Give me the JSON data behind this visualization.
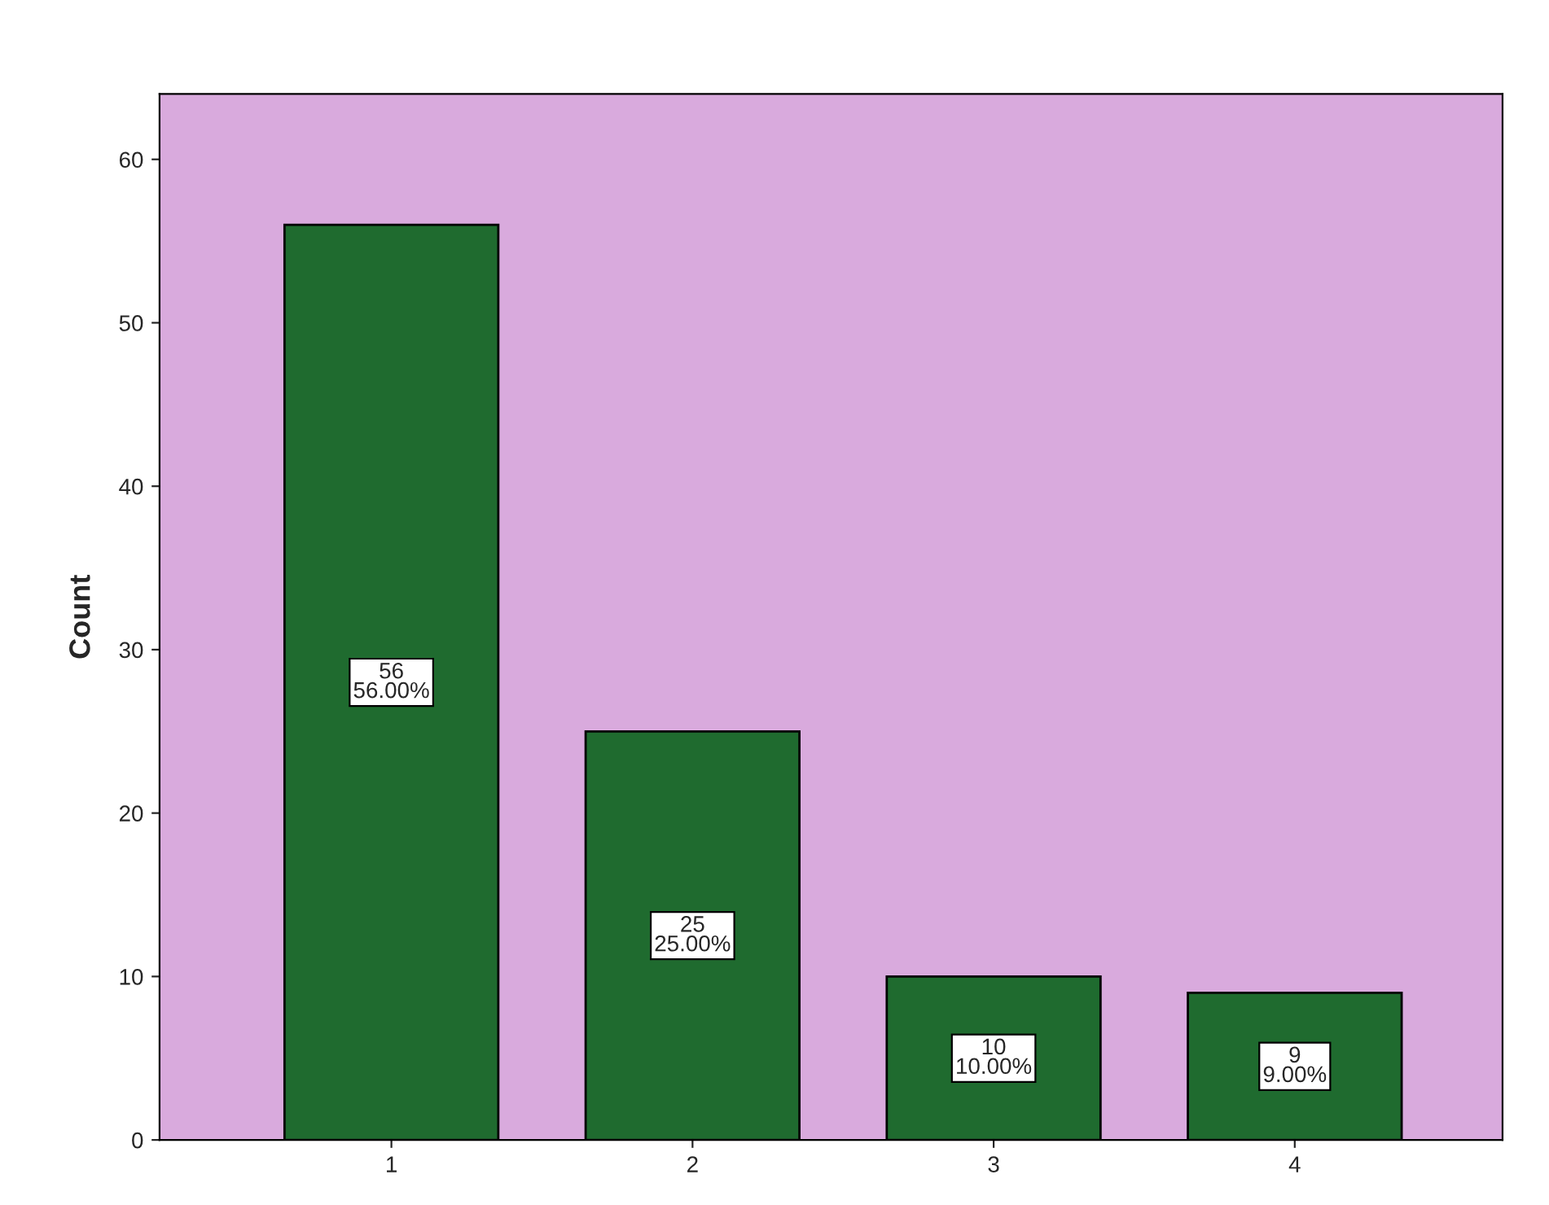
{
  "chart_data": {
    "type": "bar",
    "ylabel": "Count",
    "categories": [
      "1",
      "2",
      "3",
      "4"
    ],
    "values": [
      56,
      25,
      10,
      9
    ],
    "value_labels": [
      "56\n56.00%",
      "25\n25.00%",
      "10\n10.00%",
      "9\n9.00%"
    ],
    "color": "#1f6b2f",
    "ylim": [
      0,
      64
    ],
    "yticks": [
      0,
      10,
      20,
      30,
      40,
      50,
      60
    ],
    "grid": false
  }
}
